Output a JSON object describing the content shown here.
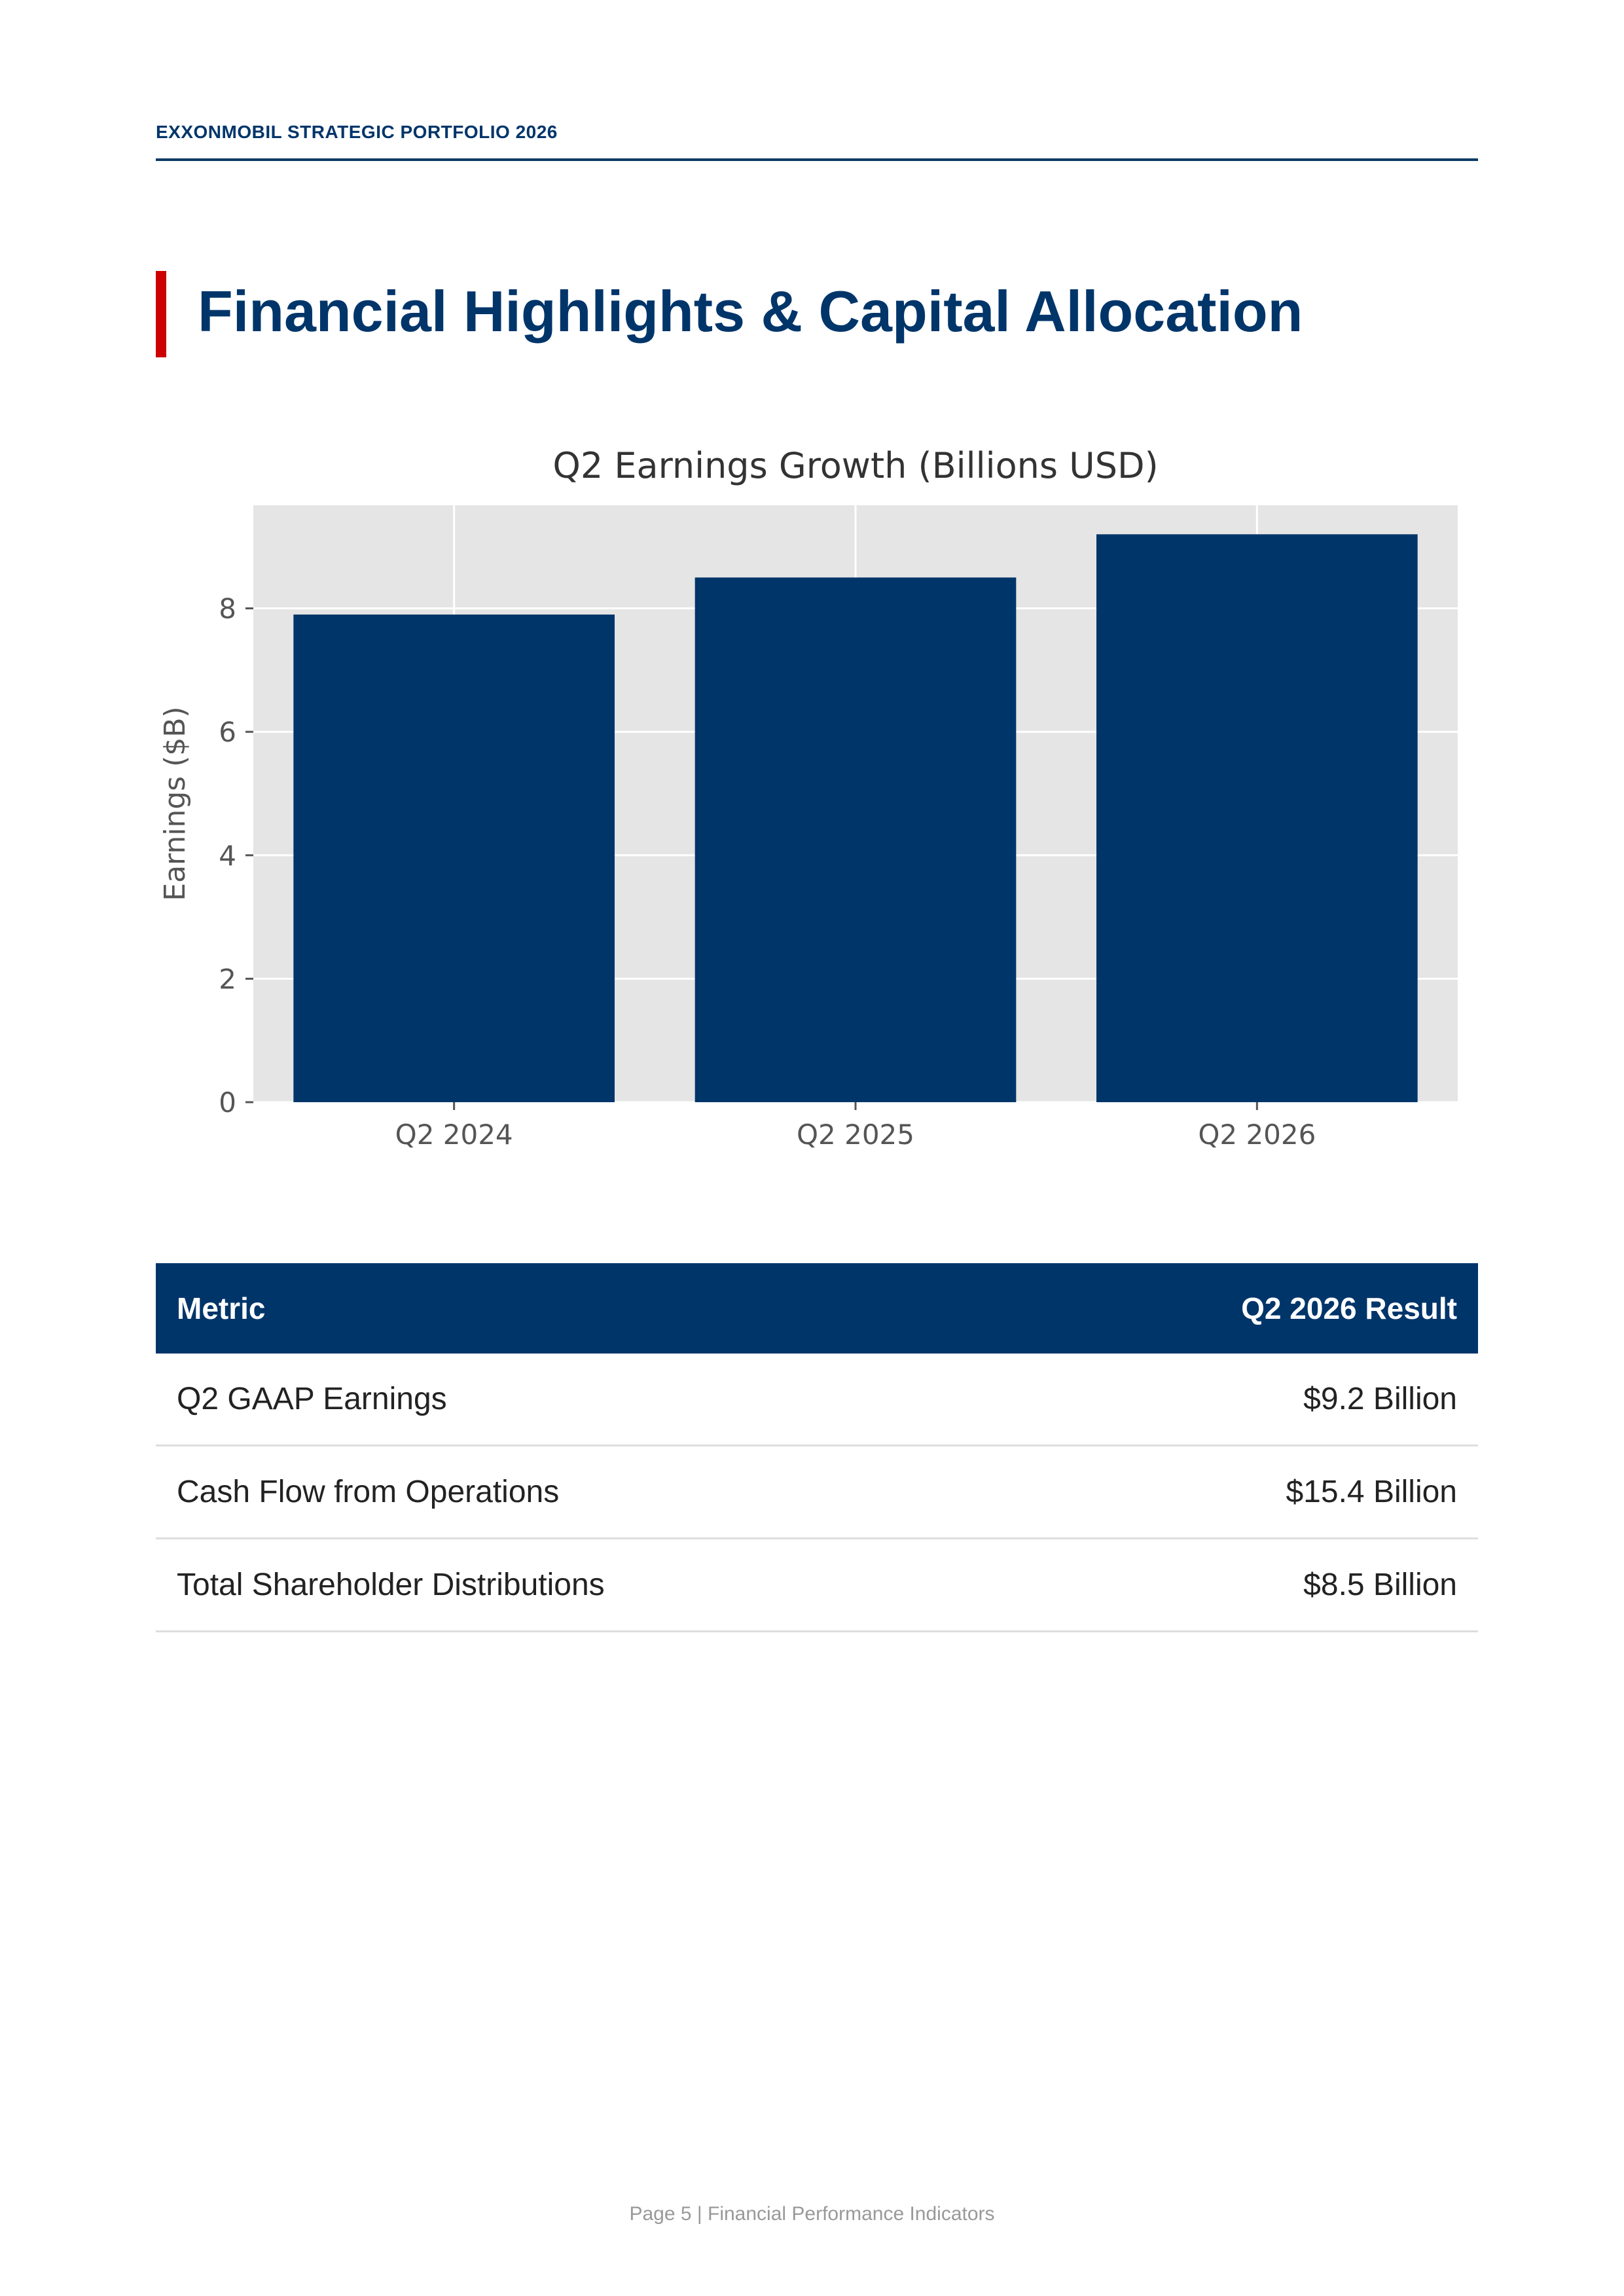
{
  "header": {
    "running_title": "EXXONMOBIL STRATEGIC PORTFOLIO 2026"
  },
  "page": {
    "title": "Financial Highlights & Capital Allocation",
    "accent_color": "#cc0000",
    "brand_color": "#00356a"
  },
  "chart_data": {
    "type": "bar",
    "title": "Q2 Earnings Growth (Billions USD)",
    "xlabel": "",
    "ylabel": "Earnings ($B)",
    "categories": [
      "Q2 2024",
      "Q2 2025",
      "Q2 2026"
    ],
    "values": [
      7.9,
      8.5,
      9.2
    ],
    "ylim": [
      0,
      9.67
    ],
    "yticks": [
      0,
      2,
      4,
      6,
      8
    ],
    "grid": true,
    "bar_color": "#00356a",
    "background_color": "#e5e5e5"
  },
  "table": {
    "headers": [
      "Metric",
      "Q2 2026 Result"
    ],
    "rows": [
      [
        "Q2 GAAP Earnings",
        "$9.2 Billion"
      ],
      [
        "Cash Flow from Operations",
        "$15.4 Billion"
      ],
      [
        "Total Shareholder Distributions",
        "$8.5 Billion"
      ]
    ]
  },
  "footer": {
    "text": "Page 5 | Financial Performance Indicators"
  }
}
